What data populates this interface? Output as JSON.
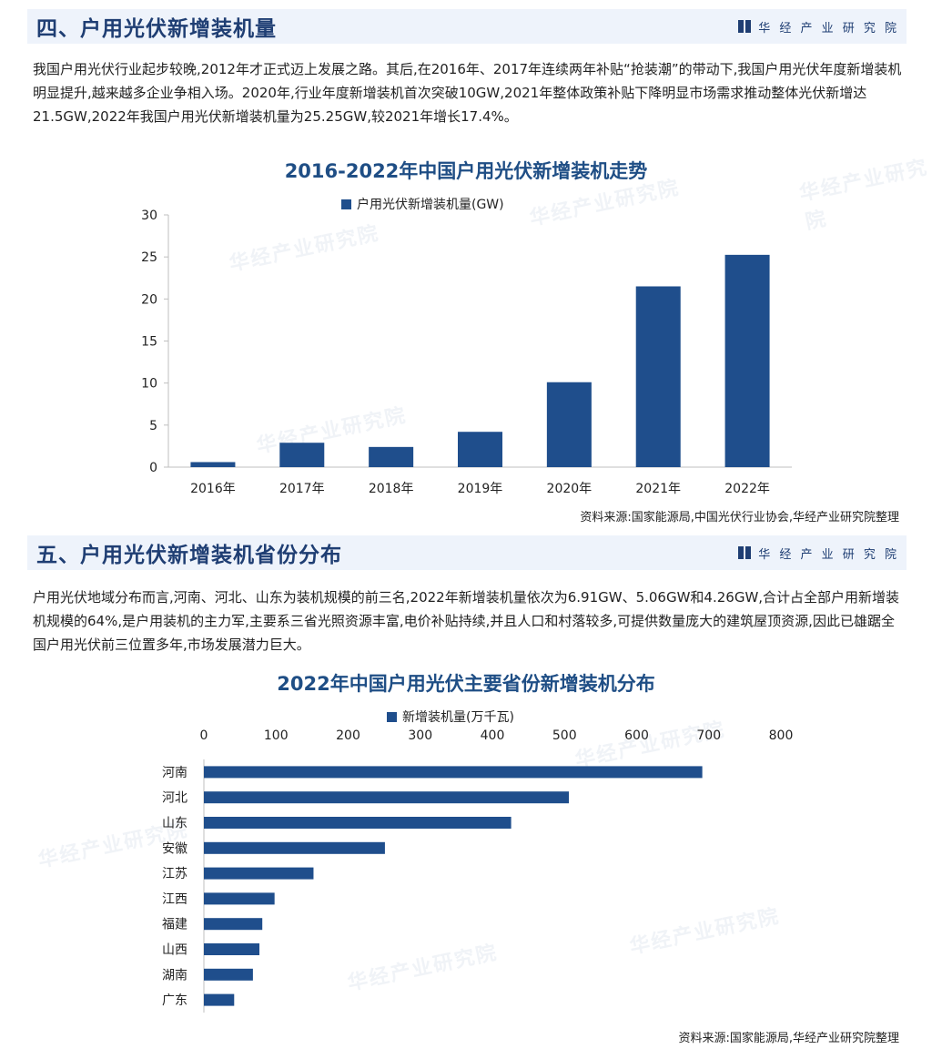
{
  "brand": "华 经 产 业 研 究 院",
  "watermark": "华经产业研究院",
  "section4": {
    "title": "四、户用光伏新增装机量",
    "paragraph": "我国户用光伏行业起步较晚,2012年才正式迈上发展之路。其后,在2016年、2017年连续两年补贴“抢装潮”的带动下,我国户用光伏年度新增装机明显提升,越来越多企业争相入场。2020年,行业年度新增装机首次突破10GW,2021年整体政策补贴下降明显市场需求推动整体光伏新增达21.5GW,2022年我国户用光伏新增装机量为25.25GW,较2021年增长17.4%。",
    "source": "资料来源:国家能源局,中国光伏行业协会,华经产业研究院整理"
  },
  "section5": {
    "title": "五、户用光伏新增装机省份分布",
    "paragraph": "户用光伏地域分布而言,河南、河北、山东为装机规模的前三名,2022年新增装机量依次为6.91GW、5.06GW和4.26GW,合计占全部户用新增装机规模的64%,是户用装机的主力军,主要系三省光照资源丰富,电价补贴持续,并且人口和村落较多,可提供数量庞大的建筑屋顶资源,因此已雄踞全国户用光伏前三位置多年,市场发展潜力巨大。",
    "source": "资料来源:国家能源局,华经产业研究院整理"
  },
  "chart_data": [
    {
      "type": "bar",
      "title": "2016-2022年中国户用光伏新增装机走势",
      "categories": [
        "2016年",
        "2017年",
        "2018年",
        "2019年",
        "2020年",
        "2021年",
        "2022年"
      ],
      "series": [
        {
          "name": "户用光伏新增装机量(GW)",
          "values": [
            0.6,
            2.9,
            2.4,
            4.2,
            10.1,
            21.5,
            25.25
          ],
          "color": "#1f4e8c"
        }
      ],
      "ylim": [
        0,
        30
      ],
      "yticks": [
        0,
        5,
        10,
        15,
        20,
        25,
        30
      ],
      "grid": false,
      "legend": "top-center"
    },
    {
      "type": "bar",
      "orientation": "horizontal",
      "title": "2022年中国户用光伏主要省份新增装机分布",
      "categories": [
        "河南",
        "河北",
        "山东",
        "安徽",
        "江苏",
        "江西",
        "福建",
        "山西",
        "湖南",
        "广东"
      ],
      "series": [
        {
          "name": "新增装机量(万千瓦)",
          "values": [
            691,
            506,
            426,
            251,
            152,
            98,
            81,
            77,
            68,
            42
          ],
          "color": "#1f4e8c"
        }
      ],
      "xlim": [
        0,
        800
      ],
      "xticks": [
        0,
        100,
        200,
        300,
        400,
        500,
        600,
        700,
        800
      ],
      "grid": false,
      "legend": "top-center"
    }
  ]
}
